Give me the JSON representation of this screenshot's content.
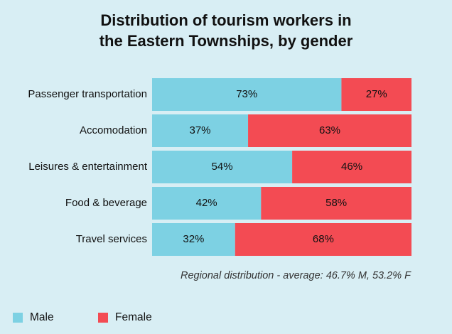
{
  "chart_data": {
    "type": "bar",
    "orientation": "horizontal",
    "stacked": true,
    "title_lines": [
      "Distribution of tourism workers in",
      "the Eastern Townships, by gender"
    ],
    "categories": [
      "Passenger transportation",
      "Accomodation",
      "Leisures & entertainment",
      "Food & beverage",
      "Travel services"
    ],
    "series": [
      {
        "name": "Male",
        "values": [
          73,
          37,
          54,
          42,
          32
        ],
        "labels": [
          "73%",
          "37%",
          "54%",
          "42%",
          "32%"
        ],
        "color": "#7dd1e3"
      },
      {
        "name": "Female",
        "values": [
          27,
          63,
          46,
          58,
          68
        ],
        "labels": [
          "27%",
          "63%",
          "46%",
          "58%",
          "68%"
        ],
        "color": "#f34b53"
      }
    ],
    "xlim": [
      0,
      100
    ],
    "grid": false,
    "legend_position": "bottom-left",
    "annotation": "Regional distribution - average: 46.7% M, 53.2% F"
  }
}
